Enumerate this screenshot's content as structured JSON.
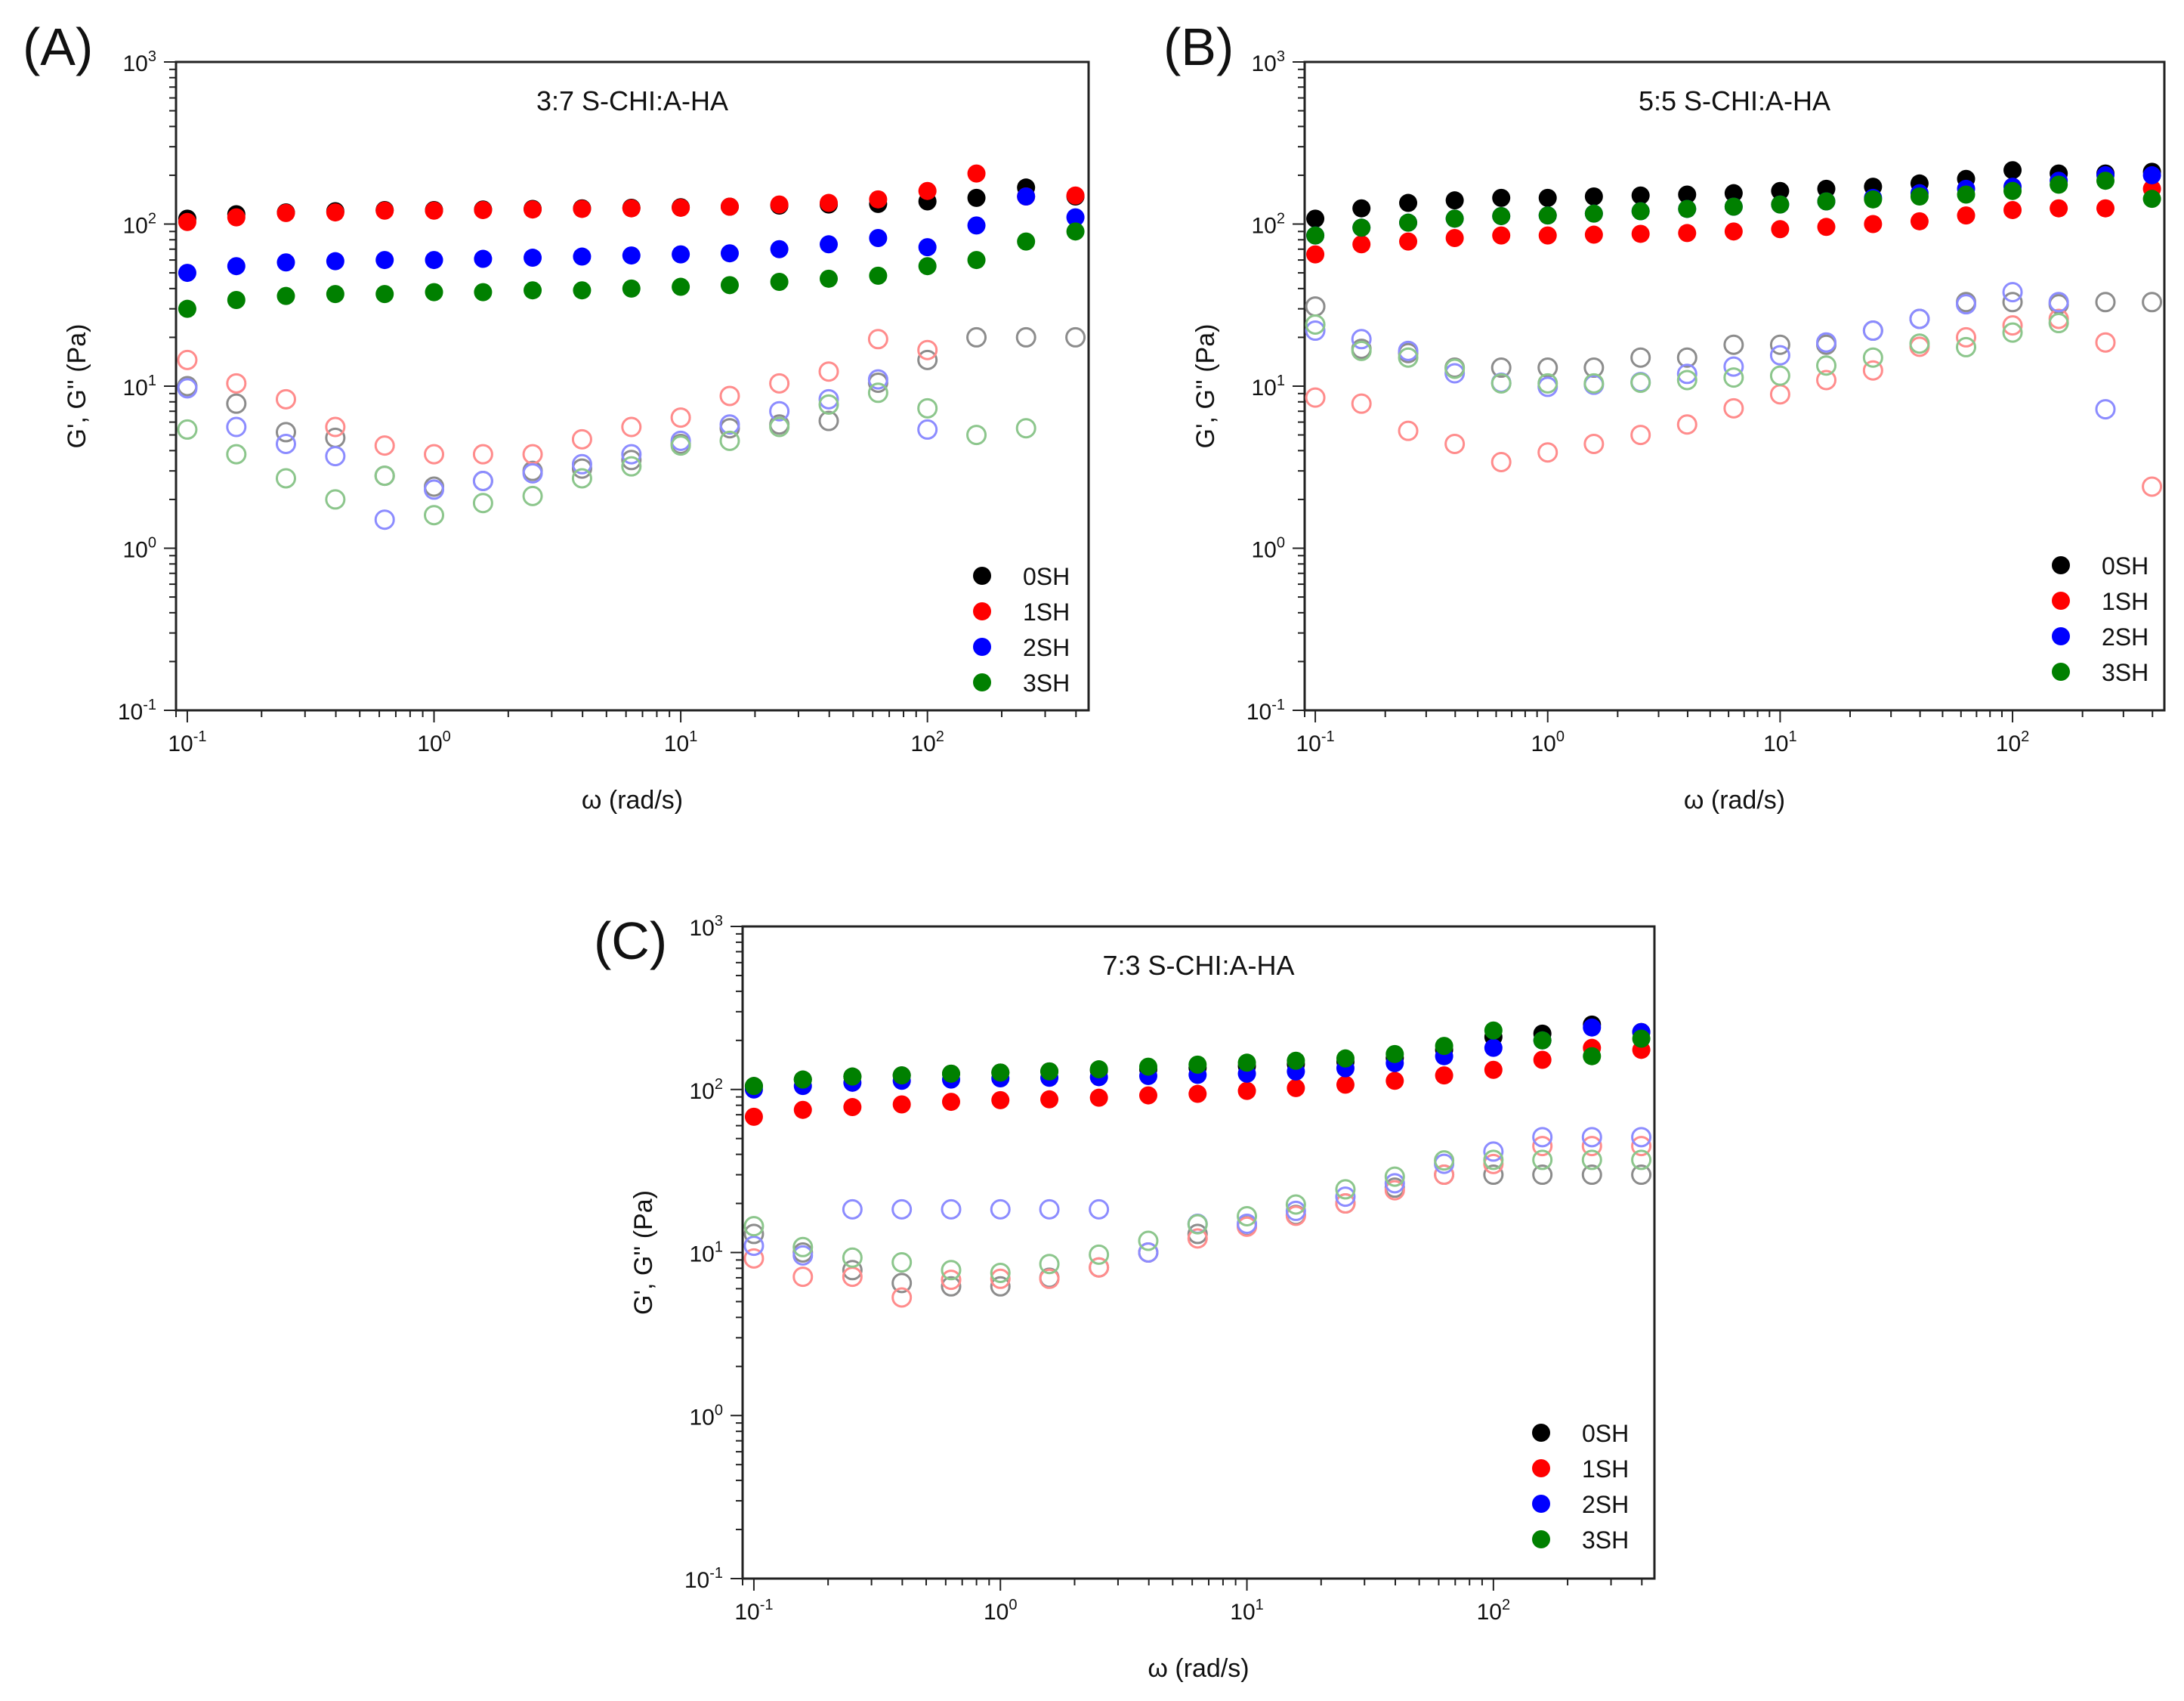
{
  "chart_data": [
    {
      "panel_label": "(A)",
      "type": "scatter",
      "title": "3:7 S-CHI:A-HA",
      "xlabel": "ω (rad/s)",
      "ylabel": "G', G'' (Pa)",
      "xscale": "log",
      "yscale": "log",
      "xlim": [
        0.09,
        450
      ],
      "ylim": [
        0.1,
        1000
      ],
      "x_ticks": [
        {
          "value": 0.1,
          "base": "10",
          "exp": "-1"
        },
        {
          "value": 1,
          "base": "10",
          "exp": "0"
        },
        {
          "value": 10,
          "base": "10",
          "exp": "1"
        },
        {
          "value": 100,
          "base": "10",
          "exp": "2"
        }
      ],
      "y_ticks": [
        {
          "value": 0.1,
          "base": "10",
          "exp": "-1"
        },
        {
          "value": 1,
          "base": "10",
          "exp": "0"
        },
        {
          "value": 10,
          "base": "10",
          "exp": "1"
        },
        {
          "value": 100,
          "base": "10",
          "exp": "2"
        },
        {
          "value": 1000,
          "base": "10",
          "exp": "3"
        }
      ],
      "legend_position": "bottom-right",
      "x": [
        0.1,
        0.158,
        0.251,
        0.398,
        0.631,
        1,
        1.58,
        2.51,
        3.98,
        6.31,
        10,
        15.8,
        25.1,
        39.8,
        63.1,
        100,
        158,
        251,
        398
      ],
      "series": [
        {
          "name": "0SH",
          "color": "#000000",
          "g_prime": [
            108,
            115,
            118,
            120,
            122,
            122,
            123,
            124,
            125,
            126,
            127,
            128,
            130,
            132,
            133,
            138,
            145,
            168,
            148
          ],
          "g_double_prime": [
            10,
            7.8,
            5.2,
            4.8,
            2.8,
            2.4,
            2.6,
            3,
            3.1,
            3.5,
            4.4,
            5.5,
            5.8,
            6.1,
            10.5,
            14.5,
            20,
            20,
            20
          ]
        },
        {
          "name": "1SH",
          "color": "#ff0000",
          "g_prime": [
            103,
            110,
            117,
            118,
            121,
            121,
            122,
            123,
            124,
            125,
            126,
            128,
            132,
            135,
            142,
            160,
            205,
            148,
            150
          ],
          "g_double_prime": [
            14.5,
            10.4,
            8.3,
            5.6,
            4.3,
            3.8,
            3.8,
            3.8,
            4.7,
            5.6,
            6.4,
            8.7,
            10.4,
            12.3,
            19.5,
            16.7,
            null,
            null,
            null
          ]
        },
        {
          "name": "2SH",
          "color": "#0000ff",
          "g_prime": [
            50,
            55,
            58,
            59,
            60,
            60,
            61,
            62,
            63,
            64,
            65,
            66,
            70,
            75,
            82,
            72,
            98,
            148,
            110
          ],
          "g_double_prime": [
            9.7,
            5.6,
            4.4,
            3.7,
            1.5,
            2.3,
            2.6,
            2.9,
            3.3,
            3.8,
            4.6,
            5.8,
            7,
            8.3,
            11,
            5.4,
            null,
            null,
            null
          ]
        },
        {
          "name": "3SH",
          "color": "#008000",
          "g_prime": [
            30,
            34,
            36,
            37,
            37,
            38,
            38,
            39,
            39,
            40,
            41,
            42,
            44,
            46,
            48,
            55,
            60,
            78,
            90
          ],
          "g_double_prime": [
            5.4,
            3.8,
            2.7,
            2,
            2.8,
            1.6,
            1.9,
            2.1,
            2.7,
            3.2,
            4.3,
            4.6,
            5.6,
            7.7,
            9.1,
            7.3,
            5,
            5.5,
            null
          ]
        }
      ]
    },
    {
      "panel_label": "(B)",
      "type": "scatter",
      "title": "5:5 S-CHI:A-HA",
      "xlabel": "ω (rad/s)",
      "ylabel": "G', G'' (Pa)",
      "xscale": "log",
      "yscale": "log",
      "xlim": [
        0.09,
        450
      ],
      "ylim": [
        0.1,
        1000
      ],
      "x_ticks": [
        {
          "value": 0.1,
          "base": "10",
          "exp": "-1"
        },
        {
          "value": 1,
          "base": "10",
          "exp": "0"
        },
        {
          "value": 10,
          "base": "10",
          "exp": "1"
        },
        {
          "value": 100,
          "base": "10",
          "exp": "2"
        }
      ],
      "y_ticks": [
        {
          "value": 0.1,
          "base": "10",
          "exp": "-1"
        },
        {
          "value": 1,
          "base": "10",
          "exp": "0"
        },
        {
          "value": 10,
          "base": "10",
          "exp": "1"
        },
        {
          "value": 100,
          "base": "10",
          "exp": "2"
        },
        {
          "value": 1000,
          "base": "10",
          "exp": "3"
        }
      ],
      "legend_position": "bottom-right",
      "x": [
        0.1,
        0.158,
        0.251,
        0.398,
        0.631,
        1,
        1.58,
        2.51,
        3.98,
        6.31,
        10,
        15.8,
        25.1,
        39.8,
        63.1,
        100,
        158,
        251,
        398
      ],
      "series": [
        {
          "name": "0SH",
          "color": "#000000",
          "g_prime": [
            108,
            125,
            135,
            140,
            145,
            145,
            148,
            150,
            152,
            155,
            160,
            165,
            170,
            178,
            190,
            215,
            205,
            205,
            210
          ],
          "g_double_prime": [
            31,
            17,
            16,
            13,
            13,
            13,
            13,
            15,
            15,
            18,
            18,
            18,
            22,
            26,
            33,
            33,
            32,
            33,
            33
          ]
        },
        {
          "name": "1SH",
          "color": "#ff0000",
          "g_prime": [
            65,
            75,
            78,
            82,
            85,
            85,
            86,
            87,
            88,
            90,
            93,
            96,
            100,
            104,
            113,
            122,
            125,
            125,
            165
          ],
          "g_double_prime": [
            8.5,
            7.8,
            5.3,
            4.4,
            3.4,
            3.9,
            4.4,
            5,
            5.8,
            7.3,
            8.9,
            10.9,
            12.5,
            17.5,
            20,
            23.7,
            26,
            18.6,
            2.4
          ]
        },
        {
          "name": "2SH",
          "color": "#0000ff",
          "g_prime": [
            85,
            95,
            102,
            108,
            112,
            113,
            116,
            120,
            124,
            128,
            132,
            138,
            145,
            155,
            165,
            170,
            185,
            200,
            200
          ],
          "g_double_prime": [
            22,
            19.5,
            16.5,
            12,
            10.5,
            9.9,
            10.2,
            10.6,
            11.9,
            13.2,
            15.5,
            18.6,
            22,
            26,
            32,
            38,
            33,
            7.2,
            null
          ]
        },
        {
          "name": "3SH",
          "color": "#008000",
          "g_prime": [
            85,
            95,
            102,
            108,
            112,
            113,
            116,
            120,
            124,
            128,
            132,
            138,
            142,
            148,
            152,
            160,
            175,
            185,
            143
          ],
          "g_double_prime": [
            24,
            16.5,
            15,
            12.8,
            10.4,
            10.4,
            10.4,
            10.5,
            10.9,
            11.3,
            11.6,
            13.4,
            15,
            18.3,
            17.4,
            21.4,
            24.5,
            null,
            null
          ]
        }
      ]
    },
    {
      "panel_label": "(C)",
      "type": "scatter",
      "title": "7:3 S-CHI:A-HA",
      "xlabel": "ω (rad/s)",
      "ylabel": "G', G'' (Pa)",
      "xscale": "log",
      "yscale": "log",
      "xlim": [
        0.09,
        450
      ],
      "ylim": [
        0.1,
        1000
      ],
      "x_ticks": [
        {
          "value": 0.1,
          "base": "10",
          "exp": "-1"
        },
        {
          "value": 1,
          "base": "10",
          "exp": "0"
        },
        {
          "value": 10,
          "base": "10",
          "exp": "1"
        },
        {
          "value": 100,
          "base": "10",
          "exp": "2"
        }
      ],
      "y_ticks": [
        {
          "value": 0.1,
          "base": "10",
          "exp": "-1"
        },
        {
          "value": 1,
          "base": "10",
          "exp": "0"
        },
        {
          "value": 10,
          "base": "10",
          "exp": "1"
        },
        {
          "value": 100,
          "base": "10",
          "exp": "2"
        },
        {
          "value": 1000,
          "base": "10",
          "exp": "3"
        }
      ],
      "legend_position": "bottom-right",
      "x": [
        0.1,
        0.158,
        0.251,
        0.398,
        0.631,
        1,
        1.58,
        2.51,
        3.98,
        6.31,
        10,
        15.8,
        25.1,
        39.8,
        63.1,
        100,
        158,
        251,
        398
      ],
      "series": [
        {
          "name": "0SH",
          "color": "#000000",
          "g_prime": [
            105,
            115,
            120,
            122,
            125,
            127,
            129,
            131,
            133,
            136,
            139,
            143,
            148,
            156,
            175,
            210,
            220,
            250,
            225
          ],
          "g_double_prime": [
            13,
            10,
            7.8,
            6.5,
            6.2,
            6.2,
            7,
            8.1,
            10,
            13,
            14.5,
            17,
            20,
            25,
            30,
            30,
            30,
            30,
            30
          ]
        },
        {
          "name": "1SH",
          "color": "#ff0000",
          "g_prime": [
            68,
            75,
            78,
            81,
            84,
            86,
            87,
            89,
            92,
            94,
            98,
            102,
            107,
            113,
            122,
            132,
            152,
            180,
            175
          ],
          "g_double_prime": [
            9.2,
            7.1,
            7.1,
            5.3,
            6.8,
            6.9,
            6.9,
            8.1,
            10,
            12.2,
            14.4,
            16.8,
            20,
            24.1,
            30,
            34.9,
            45,
            45,
            45
          ]
        },
        {
          "name": "2SH",
          "color": "#0000ff",
          "g_prime": [
            100,
            105,
            110,
            113,
            115,
            117,
            118,
            119,
            121,
            123,
            125,
            129,
            135,
            145,
            160,
            180,
            200,
            240,
            225
          ],
          "g_double_prime": [
            11,
            9.6,
            18.4,
            18.4,
            18.4,
            18.4,
            18.4,
            18.4,
            10,
            15,
            15,
            18,
            22,
            26.6,
            35,
            41.6,
            51,
            51,
            51
          ]
        },
        {
          "name": "3SH",
          "color": "#008000",
          "g_prime": [
            105,
            115,
            120,
            122,
            125,
            127,
            129,
            133,
            138,
            142,
            146,
            150,
            155,
            165,
            185,
            230,
            200,
            160,
            205
          ],
          "g_double_prime": [
            14.5,
            10.8,
            9.3,
            8.7,
            7.8,
            7.5,
            8.5,
            9.7,
            11.8,
            14.9,
            16.7,
            19.7,
            24.4,
            29.2,
            36.7,
            37,
            37,
            37,
            37
          ]
        }
      ]
    }
  ]
}
